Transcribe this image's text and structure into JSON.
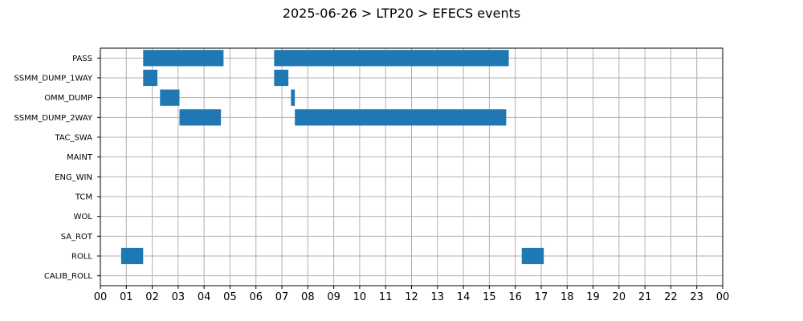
{
  "chart_data": {
    "type": "gantt",
    "title": "2025-06-26 > LTP20 > EFECS events",
    "xlabel": "",
    "ylabel": "",
    "xlim": [
      0,
      24
    ],
    "x_unit": "hour",
    "x_ticks": [
      "00",
      "01",
      "02",
      "03",
      "04",
      "05",
      "06",
      "07",
      "08",
      "09",
      "10",
      "11",
      "12",
      "13",
      "14",
      "15",
      "16",
      "17",
      "18",
      "19",
      "20",
      "21",
      "22",
      "23",
      "00"
    ],
    "grid": true,
    "color": "#1f77b4",
    "categories": [
      "PASS",
      "SSMM_DUMP_1WAY",
      "OMM_DUMP",
      "SSMM_DUMP_2WAY",
      "TAC_SWA",
      "MAINT",
      "ENG_WIN",
      "TCM",
      "WOL",
      "SA_ROT",
      "ROLL",
      "CALIB_ROLL"
    ],
    "events": [
      {
        "category": "PASS",
        "start": 1.65,
        "end": 4.75
      },
      {
        "category": "PASS",
        "start": 6.7,
        "end": 15.75
      },
      {
        "category": "SSMM_DUMP_1WAY",
        "start": 1.65,
        "end": 2.2
      },
      {
        "category": "SSMM_DUMP_1WAY",
        "start": 6.7,
        "end": 7.25
      },
      {
        "category": "OMM_DUMP",
        "start": 2.3,
        "end": 3.05
      },
      {
        "category": "OMM_DUMP",
        "start": 7.35,
        "end": 7.5
      },
      {
        "category": "SSMM_DUMP_2WAY",
        "start": 3.05,
        "end": 4.65
      },
      {
        "category": "SSMM_DUMP_2WAY",
        "start": 7.5,
        "end": 15.65
      },
      {
        "category": "ROLL",
        "start": 0.8,
        "end": 1.65
      },
      {
        "category": "ROLL",
        "start": 16.25,
        "end": 17.1
      }
    ]
  }
}
